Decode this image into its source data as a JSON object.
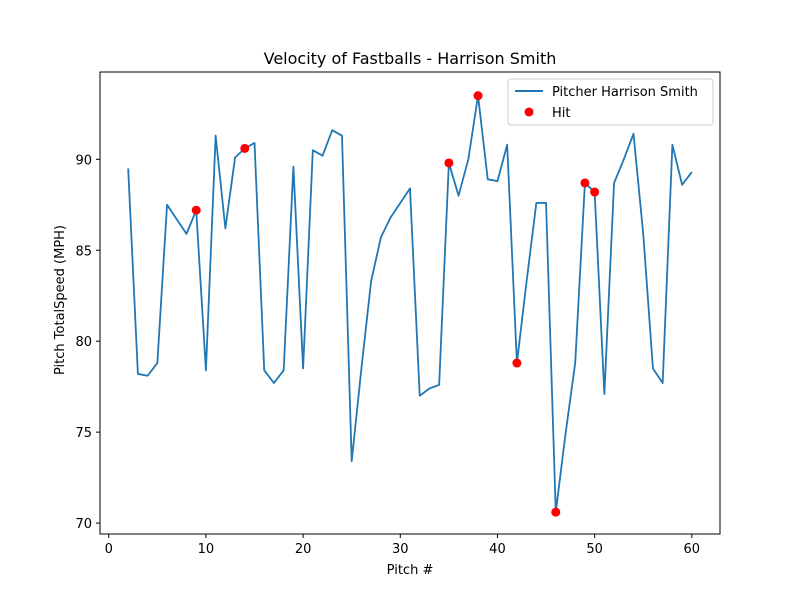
{
  "chart_data": {
    "type": "line",
    "title": "Velocity of Fastballs - Harrison Smith",
    "xlabel": "Pitch #",
    "ylabel": "Pitch TotalSpeed (MPH)",
    "xlim": [
      -0.9,
      62.9
    ],
    "ylim": [
      69.4,
      94.8
    ],
    "xticks": [
      0,
      10,
      20,
      30,
      40,
      50,
      60
    ],
    "yticks": [
      70,
      75,
      80,
      85,
      90
    ],
    "legend_position": "top-right",
    "grid": false,
    "series": [
      {
        "name": "Pitcher Harrison Smith",
        "kind": "line",
        "color": "#1f77b4",
        "x": [
          2,
          3,
          4,
          5,
          6,
          7,
          8,
          9,
          10,
          11,
          12,
          13,
          14,
          15,
          16,
          17,
          18,
          19,
          20,
          21,
          22,
          23,
          24,
          25,
          26,
          27,
          28,
          29,
          30,
          31,
          32,
          33,
          34,
          35,
          36,
          37,
          38,
          39,
          40,
          41,
          42,
          43,
          44,
          45,
          46,
          47,
          48,
          49,
          50,
          51,
          52,
          53,
          54,
          55,
          56,
          57,
          58,
          59,
          60
        ],
        "y": [
          89.5,
          78.2,
          78.1,
          78.8,
          87.5,
          86.7,
          85.9,
          87.2,
          78.4,
          91.3,
          86.2,
          90.1,
          90.6,
          90.9,
          78.4,
          77.7,
          78.4,
          89.6,
          78.5,
          90.5,
          90.2,
          91.6,
          91.3,
          73.4,
          78.5,
          83.3,
          85.7,
          86.8,
          87.6,
          88.4,
          77.0,
          77.4,
          77.6,
          89.8,
          88.0,
          90.0,
          93.5,
          88.9,
          88.8,
          90.8,
          78.8,
          83.3,
          87.6,
          87.6,
          70.6,
          74.9,
          78.8,
          88.7,
          88.2,
          77.1,
          88.7,
          90.0,
          91.4,
          85.9,
          78.5,
          77.7,
          90.8,
          88.6,
          89.3
        ]
      },
      {
        "name": "Hit",
        "kind": "scatter",
        "color": "#ff0000",
        "x": [
          9,
          14,
          35,
          38,
          42,
          46,
          49,
          50
        ],
        "y": [
          87.2,
          90.6,
          89.8,
          93.5,
          78.8,
          70.6,
          88.7,
          88.2
        ]
      }
    ]
  }
}
